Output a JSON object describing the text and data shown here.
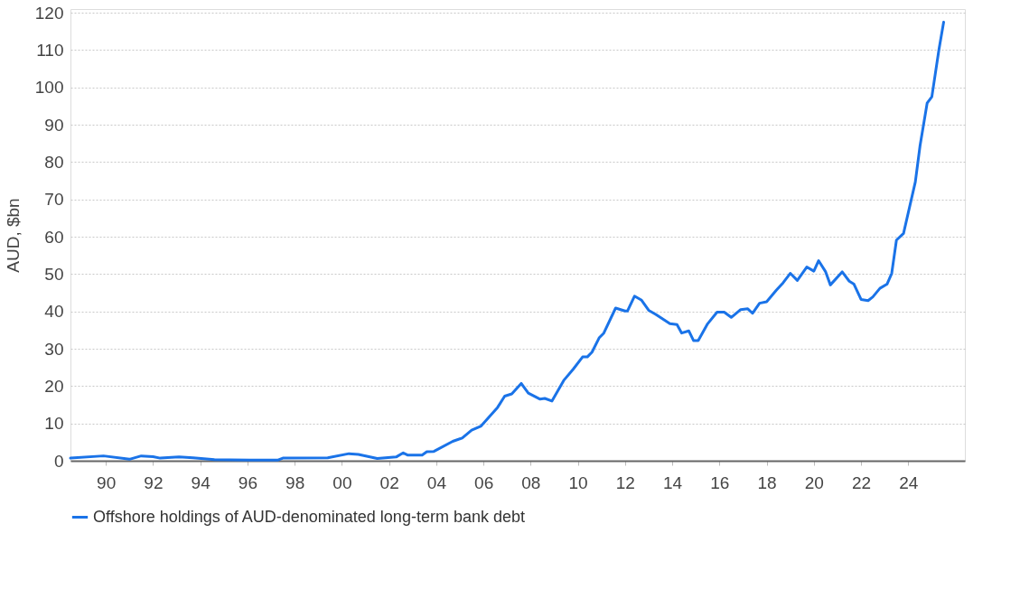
{
  "chart_data": {
    "type": "line",
    "ylabel": "AUD, $bn",
    "xlim": [
      1988.5,
      2026.4
    ],
    "ylim": [
      0,
      121
    ],
    "xticks": [
      {
        "value": 1990,
        "label": "90"
      },
      {
        "value": 1992,
        "label": "92"
      },
      {
        "value": 1994,
        "label": "94"
      },
      {
        "value": 1996,
        "label": "96"
      },
      {
        "value": 1998,
        "label": "98"
      },
      {
        "value": 2000,
        "label": "00"
      },
      {
        "value": 2002,
        "label": "02"
      },
      {
        "value": 2004,
        "label": "04"
      },
      {
        "value": 2006,
        "label": "06"
      },
      {
        "value": 2008,
        "label": "08"
      },
      {
        "value": 2010,
        "label": "10"
      },
      {
        "value": 2012,
        "label": "12"
      },
      {
        "value": 2014,
        "label": "14"
      },
      {
        "value": 2016,
        "label": "16"
      },
      {
        "value": 2018,
        "label": "18"
      },
      {
        "value": 2020,
        "label": "20"
      },
      {
        "value": 2022,
        "label": "22"
      },
      {
        "value": 2024,
        "label": "24"
      }
    ],
    "yticks": [
      0,
      10,
      20,
      30,
      40,
      50,
      60,
      70,
      80,
      90,
      100,
      110,
      120
    ],
    "grid": "y",
    "legend": "bottom",
    "marker": "none",
    "line_style": "solid",
    "series": [
      {
        "name": "Offshore holdings of AUD-denominated long-term bank debt",
        "color": "#1a73e8",
        "x": [
          1988.5,
          1989.9,
          1991.0,
          1991.5,
          1992.0,
          1992.3,
          1993.1,
          1993.7,
          1994.6,
          1996.1,
          1997.3,
          1997.5,
          1999.4,
          2000.3,
          2000.7,
          2001.5,
          2002.3,
          2002.6,
          2002.8,
          2003.4,
          2003.6,
          2003.9,
          2004.7,
          2005.1,
          2005.5,
          2005.9,
          2006.6,
          2006.9,
          2007.2,
          2007.6,
          2007.9,
          2008.4,
          2008.6,
          2008.9,
          2009.4,
          2009.8,
          2010.2,
          2010.4,
          2010.6,
          2010.9,
          2011.1,
          2011.6,
          2012.0,
          2012.1,
          2012.4,
          2012.7,
          2013.0,
          2013.3,
          2013.9,
          2014.2,
          2014.4,
          2014.7,
          2014.9,
          2015.1,
          2015.5,
          2015.9,
          2016.2,
          2016.5,
          2016.9,
          2017.2,
          2017.4,
          2017.7,
          2018.0,
          2018.4,
          2018.7,
          2019.0,
          2019.3,
          2019.7,
          2020.0,
          2020.2,
          2020.5,
          2020.7,
          2021.2,
          2021.5,
          2021.7,
          2022.0,
          2022.3,
          2022.5,
          2022.8,
          2023.1,
          2023.3,
          2023.5,
          2023.8,
          2024.3,
          2024.5,
          2024.8,
          2025.0,
          2025.3,
          2025.5
        ],
        "values": [
          0.7,
          1.3,
          0.4,
          1.3,
          1.1,
          0.7,
          1.0,
          0.8,
          0.3,
          0.2,
          0.2,
          0.7,
          0.8,
          1.9,
          1.7,
          0.6,
          1.0,
          2.1,
          1.5,
          1.5,
          2.4,
          2.5,
          5.2,
          6.1,
          8.2,
          9.3,
          14.3,
          17.3,
          17.9,
          20.7,
          18.1,
          16.5,
          16.7,
          16.0,
          21.5,
          24.5,
          27.8,
          27.8,
          29.1,
          32.9,
          34.2,
          40.9,
          40.1,
          40.1,
          44.1,
          43.0,
          40.3,
          39.2,
          36.7,
          36.5,
          34.2,
          34.8,
          32.2,
          32.2,
          36.7,
          39.8,
          39.8,
          38.4,
          40.5,
          40.7,
          39.5,
          42.2,
          42.6,
          45.6,
          47.7,
          50.2,
          48.3,
          51.9,
          50.8,
          53.6,
          50.6,
          47.1,
          50.6,
          48.1,
          47.3,
          43.2,
          42.9,
          43.9,
          46.2,
          47.3,
          50.2,
          59.1,
          60.9,
          74.7,
          84.4,
          95.8,
          97.5,
          110.1,
          117.5
        ]
      }
    ]
  }
}
